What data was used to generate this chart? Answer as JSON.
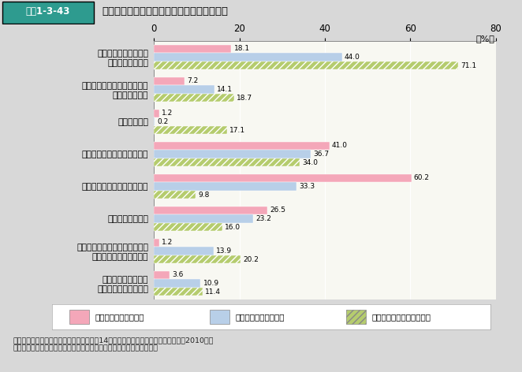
{
  "title_box": "図表1-3-43",
  "title_text": "予定子ども数別の理想子ども数を下回る理由",
  "categories": [
    "子育てや教育にお金が\nかかりすぎるから",
    "自分の仕事（勤めや家業）に\n差し支えるから",
    "家が狭いから",
    "高年齢で生むのはいやだから",
    "欲しいけれどもできないから",
    "健康上の理由から",
    "これ以上育児の心理的・肉体的\n負担に耐えられないから",
    "夫の家事・育児への\n協力が得られないから"
  ],
  "series": [
    {
      "name": "理想１人以上予定０人",
      "color": "#f4a7b9",
      "hatch": "",
      "values": [
        18.1,
        7.2,
        1.2,
        41.0,
        60.2,
        26.5,
        1.2,
        3.6
      ]
    },
    {
      "name": "理想２人以上予定１人",
      "color": "#b8cfe8",
      "hatch": "",
      "values": [
        44.0,
        14.1,
        0.2,
        36.7,
        33.3,
        23.2,
        13.9,
        10.9
      ]
    },
    {
      "name": "理想３人以上予定２人以上",
      "color": "#b5cc6e",
      "hatch": "////",
      "values": [
        71.1,
        18.7,
        17.1,
        34.0,
        9.8,
        16.0,
        20.2,
        11.4
      ]
    }
  ],
  "xlim": [
    0,
    80
  ],
  "xticks": [
    0,
    20,
    40,
    60,
    80
  ],
  "background_color": "#d8d8d8",
  "plot_background": "#f8f8f2",
  "title_bg": "#2e9b8f",
  "footer": "資料：国立社会保障・人口問題研究所「第14回出生動向基本調査（夫婦調査）」（2010年）\n（注）　対象は、予定子ども数が理想子ども数を下回る初婚同士の夫婦"
}
